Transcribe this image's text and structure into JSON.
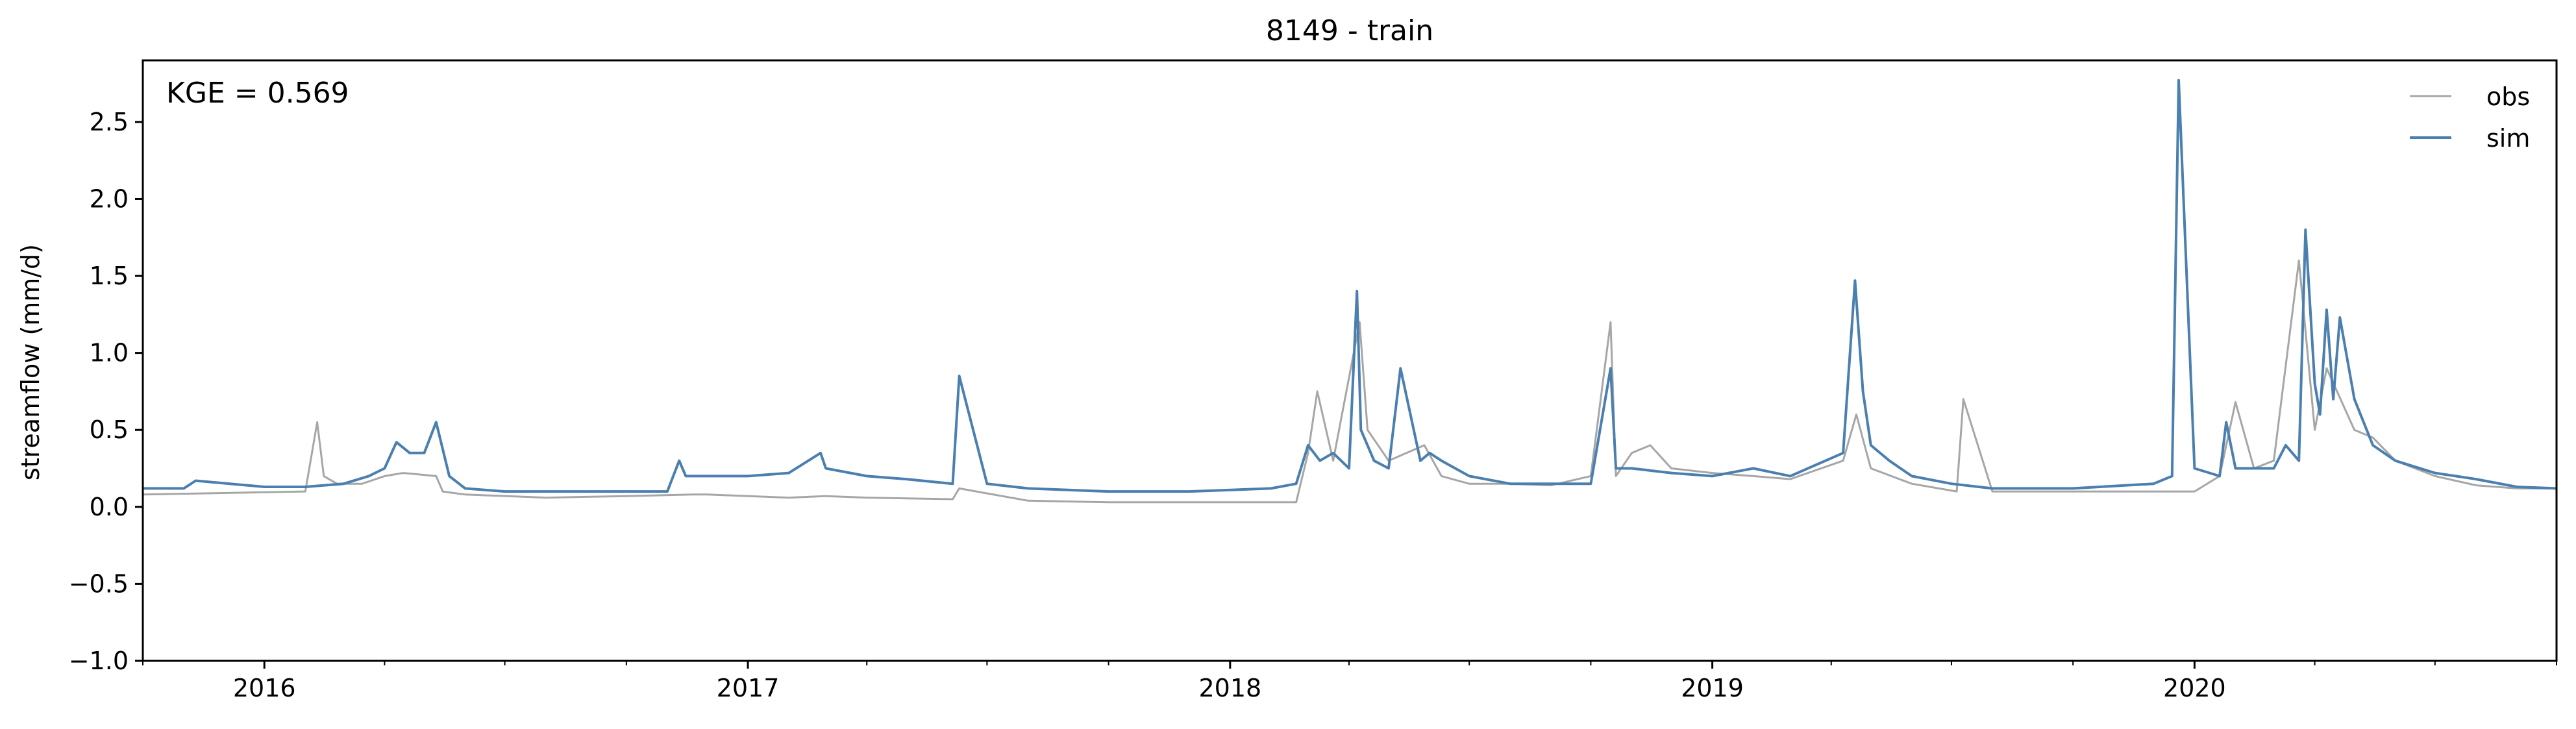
{
  "chart_data": {
    "type": "line",
    "title": "8149 - train",
    "xlabel": "",
    "ylabel": "streamflow (mm/d)",
    "annotation": "KGE = 0.569",
    "xlim": [
      "2015-10-01",
      "2020-10-01"
    ],
    "ylim": [
      -1.0,
      2.9
    ],
    "x_ticks": [
      {
        "date": "2016-01-01",
        "label": "2016"
      },
      {
        "date": "2017-01-01",
        "label": "2017"
      },
      {
        "date": "2018-01-01",
        "label": "2018"
      },
      {
        "date": "2019-01-01",
        "label": "2019"
      },
      {
        "date": "2020-01-01",
        "label": "2020"
      }
    ],
    "y_ticks": [
      {
        "value": -1.0,
        "label": "−1.0"
      },
      {
        "value": -0.5,
        "label": "−0.5"
      },
      {
        "value": 0.0,
        "label": "0.0"
      },
      {
        "value": 0.5,
        "label": "0.5"
      },
      {
        "value": 1.0,
        "label": "1.0"
      },
      {
        "value": 1.5,
        "label": "1.5"
      },
      {
        "value": 2.0,
        "label": "2.0"
      },
      {
        "value": 2.5,
        "label": "2.5"
      }
    ],
    "legend_position": "top-right",
    "grid": false,
    "series": [
      {
        "name": "obs",
        "color": "#a6a6a6",
        "x": [
          "2015-10-01",
          "2015-12-01",
          "2016-02-01",
          "2016-02-10",
          "2016-02-15",
          "2016-02-25",
          "2016-03-15",
          "2016-04-01",
          "2016-04-15",
          "2016-05-10",
          "2016-05-15",
          "2016-06-01",
          "2016-08-01",
          "2016-10-01",
          "2016-11-20",
          "2016-12-01",
          "2017-02-01",
          "2017-03-01",
          "2017-04-01",
          "2017-06-05",
          "2017-06-10",
          "2017-08-01",
          "2017-10-01",
          "2017-12-01",
          "2018-02-01",
          "2018-02-20",
          "2018-03-01",
          "2018-03-08",
          "2018-03-20",
          "2018-04-09",
          "2018-04-15",
          "2018-05-01",
          "2018-05-28",
          "2018-06-10",
          "2018-07-01",
          "2018-08-01",
          "2018-09-01",
          "2018-10-01",
          "2018-10-16",
          "2018-10-20",
          "2018-11-01",
          "2018-11-15",
          "2018-12-01",
          "2019-01-01",
          "2019-02-01",
          "2019-03-01",
          "2019-04-10",
          "2019-04-20",
          "2019-05-01",
          "2019-06-01",
          "2019-07-05",
          "2019-07-10",
          "2019-08-01",
          "2019-10-01",
          "2019-12-01",
          "2019-12-20",
          "2020-01-01",
          "2020-01-20",
          "2020-02-01",
          "2020-02-15",
          "2020-03-01",
          "2020-03-20",
          "2020-04-01",
          "2020-04-10",
          "2020-05-01",
          "2020-05-15",
          "2020-06-01",
          "2020-07-01",
          "2020-08-01",
          "2020-09-01",
          "2020-10-01"
        ],
        "y": [
          0.08,
          0.09,
          0.1,
          0.55,
          0.2,
          0.15,
          0.15,
          0.2,
          0.22,
          0.2,
          0.1,
          0.08,
          0.06,
          0.07,
          0.08,
          0.08,
          0.06,
          0.07,
          0.06,
          0.05,
          0.12,
          0.04,
          0.03,
          0.03,
          0.03,
          0.03,
          0.35,
          0.75,
          0.3,
          1.2,
          0.5,
          0.3,
          0.4,
          0.2,
          0.15,
          0.15,
          0.14,
          0.2,
          1.2,
          0.2,
          0.35,
          0.4,
          0.25,
          0.22,
          0.2,
          0.18,
          0.3,
          0.6,
          0.25,
          0.15,
          0.1,
          0.7,
          0.1,
          0.1,
          0.1,
          0.1,
          0.1,
          0.2,
          0.68,
          0.25,
          0.3,
          1.6,
          0.5,
          0.9,
          0.5,
          0.45,
          0.3,
          0.2,
          0.14,
          0.12,
          0.12
        ]
      },
      {
        "name": "sim",
        "color": "#4a7fb0",
        "x": [
          "2015-10-01",
          "2015-11-01",
          "2015-11-10",
          "2016-01-01",
          "2016-02-01",
          "2016-03-01",
          "2016-03-20",
          "2016-04-01",
          "2016-04-10",
          "2016-04-20",
          "2016-05-01",
          "2016-05-10",
          "2016-05-20",
          "2016-06-01",
          "2016-07-01",
          "2016-09-01",
          "2016-11-01",
          "2016-11-10",
          "2016-11-15",
          "2016-12-01",
          "2017-01-01",
          "2017-02-01",
          "2017-02-25",
          "2017-03-01",
          "2017-04-01",
          "2017-05-01",
          "2017-06-05",
          "2017-06-10",
          "2017-07-01",
          "2017-08-01",
          "2017-10-01",
          "2017-12-01",
          "2018-02-01",
          "2018-02-20",
          "2018-03-01",
          "2018-03-10",
          "2018-03-20",
          "2018-04-01",
          "2018-04-07",
          "2018-04-10",
          "2018-04-20",
          "2018-05-01",
          "2018-05-10",
          "2018-05-25",
          "2018-06-01",
          "2018-06-10",
          "2018-07-01",
          "2018-08-01",
          "2018-09-01",
          "2018-10-01",
          "2018-10-16",
          "2018-10-20",
          "2018-11-01",
          "2018-12-01",
          "2019-01-01",
          "2019-02-01",
          "2019-03-01",
          "2019-04-10",
          "2019-04-19",
          "2019-04-25",
          "2019-05-01",
          "2019-05-15",
          "2019-06-01",
          "2019-07-01",
          "2019-08-01",
          "2019-10-01",
          "2019-12-01",
          "2019-12-15",
          "2019-12-20",
          "2020-01-01",
          "2020-01-20",
          "2020-01-25",
          "2020-02-01",
          "2020-03-01",
          "2020-03-10",
          "2020-03-20",
          "2020-03-25",
          "2020-04-01",
          "2020-04-05",
          "2020-04-10",
          "2020-04-15",
          "2020-04-20",
          "2020-05-01",
          "2020-05-15",
          "2020-06-01",
          "2020-07-01",
          "2020-08-01",
          "2020-09-01",
          "2020-10-01"
        ],
        "y": [
          0.12,
          0.12,
          0.17,
          0.13,
          0.13,
          0.15,
          0.2,
          0.25,
          0.42,
          0.35,
          0.35,
          0.55,
          0.2,
          0.12,
          0.1,
          0.1,
          0.1,
          0.3,
          0.2,
          0.2,
          0.2,
          0.22,
          0.35,
          0.25,
          0.2,
          0.18,
          0.15,
          0.85,
          0.15,
          0.12,
          0.1,
          0.1,
          0.12,
          0.15,
          0.4,
          0.3,
          0.35,
          0.25,
          1.4,
          0.5,
          0.3,
          0.25,
          0.9,
          0.3,
          0.35,
          0.3,
          0.2,
          0.15,
          0.15,
          0.15,
          0.9,
          0.25,
          0.25,
          0.22,
          0.2,
          0.25,
          0.2,
          0.35,
          1.47,
          0.75,
          0.4,
          0.3,
          0.2,
          0.15,
          0.12,
          0.12,
          0.15,
          0.2,
          2.77,
          0.25,
          0.2,
          0.55,
          0.25,
          0.25,
          0.4,
          0.3,
          1.8,
          0.8,
          0.6,
          1.28,
          0.7,
          1.23,
          0.7,
          0.4,
          0.3,
          0.22,
          0.18,
          0.13,
          0.12
        ]
      }
    ]
  }
}
